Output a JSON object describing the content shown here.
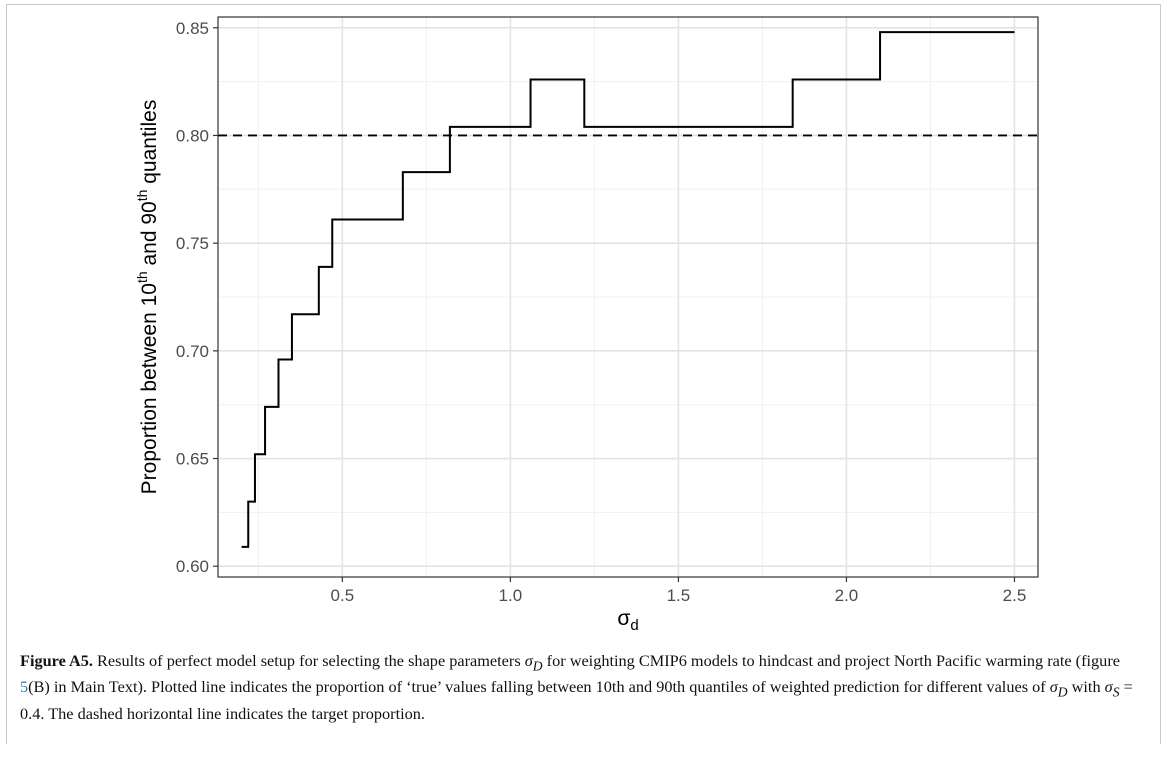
{
  "chart_data": {
    "type": "line",
    "ylabel_parts": {
      "p1": "Proportion between 10",
      "s1": "th",
      "p2": " and 90",
      "s2": "th",
      "p3": " quantiles"
    },
    "xlabel_parts": {
      "base": "σ",
      "sub": "d"
    },
    "xlim": [
      0.2,
      2.5
    ],
    "ylim": [
      0.6,
      0.85
    ],
    "x_ticks": [
      0.5,
      1.0,
      1.5,
      2.0,
      2.5
    ],
    "x_tick_labels": [
      "0.5",
      "1.0",
      "1.5",
      "2.0",
      "2.5"
    ],
    "y_ticks": [
      0.6,
      0.65,
      0.7,
      0.75,
      0.8,
      0.85
    ],
    "y_tick_labels": [
      "0.60",
      "0.65",
      "0.70",
      "0.75",
      "0.80",
      "0.85"
    ],
    "grid": true,
    "series": [
      {
        "style": "step",
        "color": "#000000",
        "x": [
          0.2,
          0.22,
          0.24,
          0.27,
          0.31,
          0.35,
          0.43,
          0.47,
          0.68,
          0.82,
          1.06,
          1.22,
          1.84,
          2.1,
          2.5
        ],
        "y": [
          0.609,
          0.63,
          0.652,
          0.674,
          0.696,
          0.717,
          0.739,
          0.761,
          0.783,
          0.804,
          0.826,
          0.804,
          0.826,
          0.848,
          0.848
        ]
      }
    ],
    "reference_line": {
      "orientation": "horizontal",
      "y": 0.8,
      "style": "dashed",
      "color": "#000000"
    }
  },
  "caption": {
    "lead": "Figure A5.",
    "text1": " Results of perfect model setup for selecting the shape parameters ",
    "sigma_d": "σ",
    "sigma_d_sub": "D",
    "text2": " for weighting CMIP6 models to hindcast and project North Pacific warming rate (figure ",
    "ref": "5",
    "text3": "(B) in Main Text). Plotted line indicates the proportion of ‘true’ values falling between 10th and 90th quantiles of weighted prediction for different values of ",
    "sigma_d2": "σ",
    "sigma_d2_sub": "D",
    "text4": " with ",
    "sigma_s": "σ",
    "sigma_s_sub": "S",
    "text5": " = 0.4. The dashed horizontal line indicates the target proportion."
  }
}
